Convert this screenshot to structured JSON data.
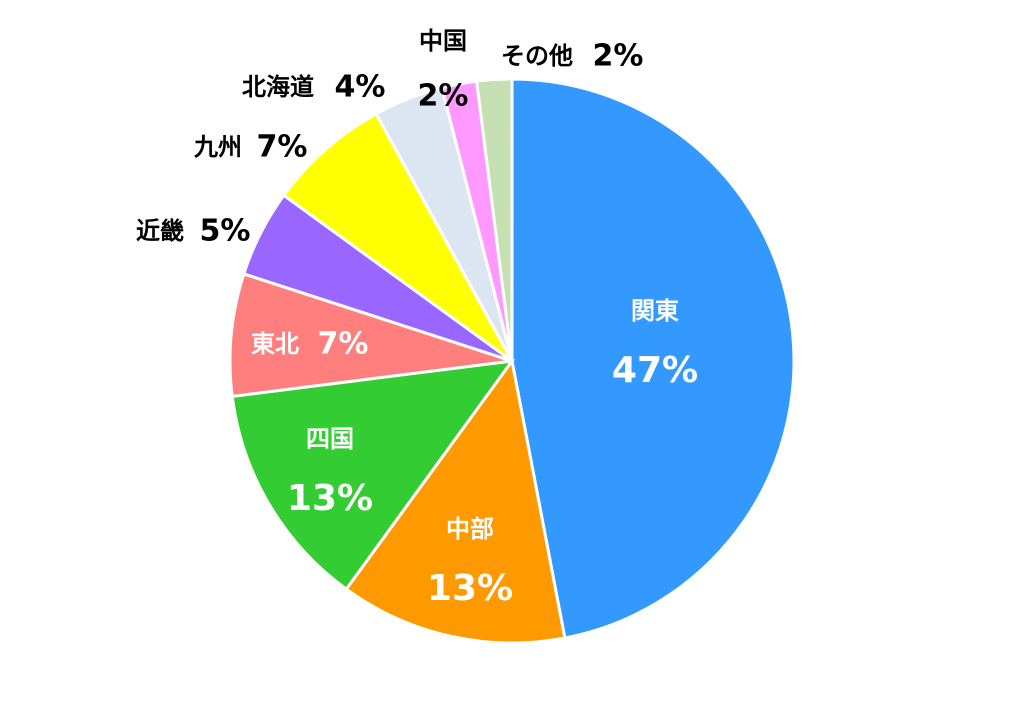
{
  "chart_data": {
    "type": "pie",
    "categories": [
      "関東",
      "中部",
      "四国",
      "東北",
      "近畿",
      "九州",
      "北海道",
      "中国",
      "その他"
    ],
    "values": [
      47,
      13,
      13,
      7,
      5,
      7,
      4,
      2,
      2
    ],
    "value_labels": [
      "47%",
      "13%",
      "13%",
      "7%",
      "5%",
      "7%",
      "4%",
      "2%",
      "2%"
    ],
    "colors": [
      "#3399ff",
      "#ff9900",
      "#33cc33",
      "#ff7f7f",
      "#9966ff",
      "#ffff00",
      "#dce6f2",
      "#ff99ff",
      "#c6e0b4"
    ]
  }
}
